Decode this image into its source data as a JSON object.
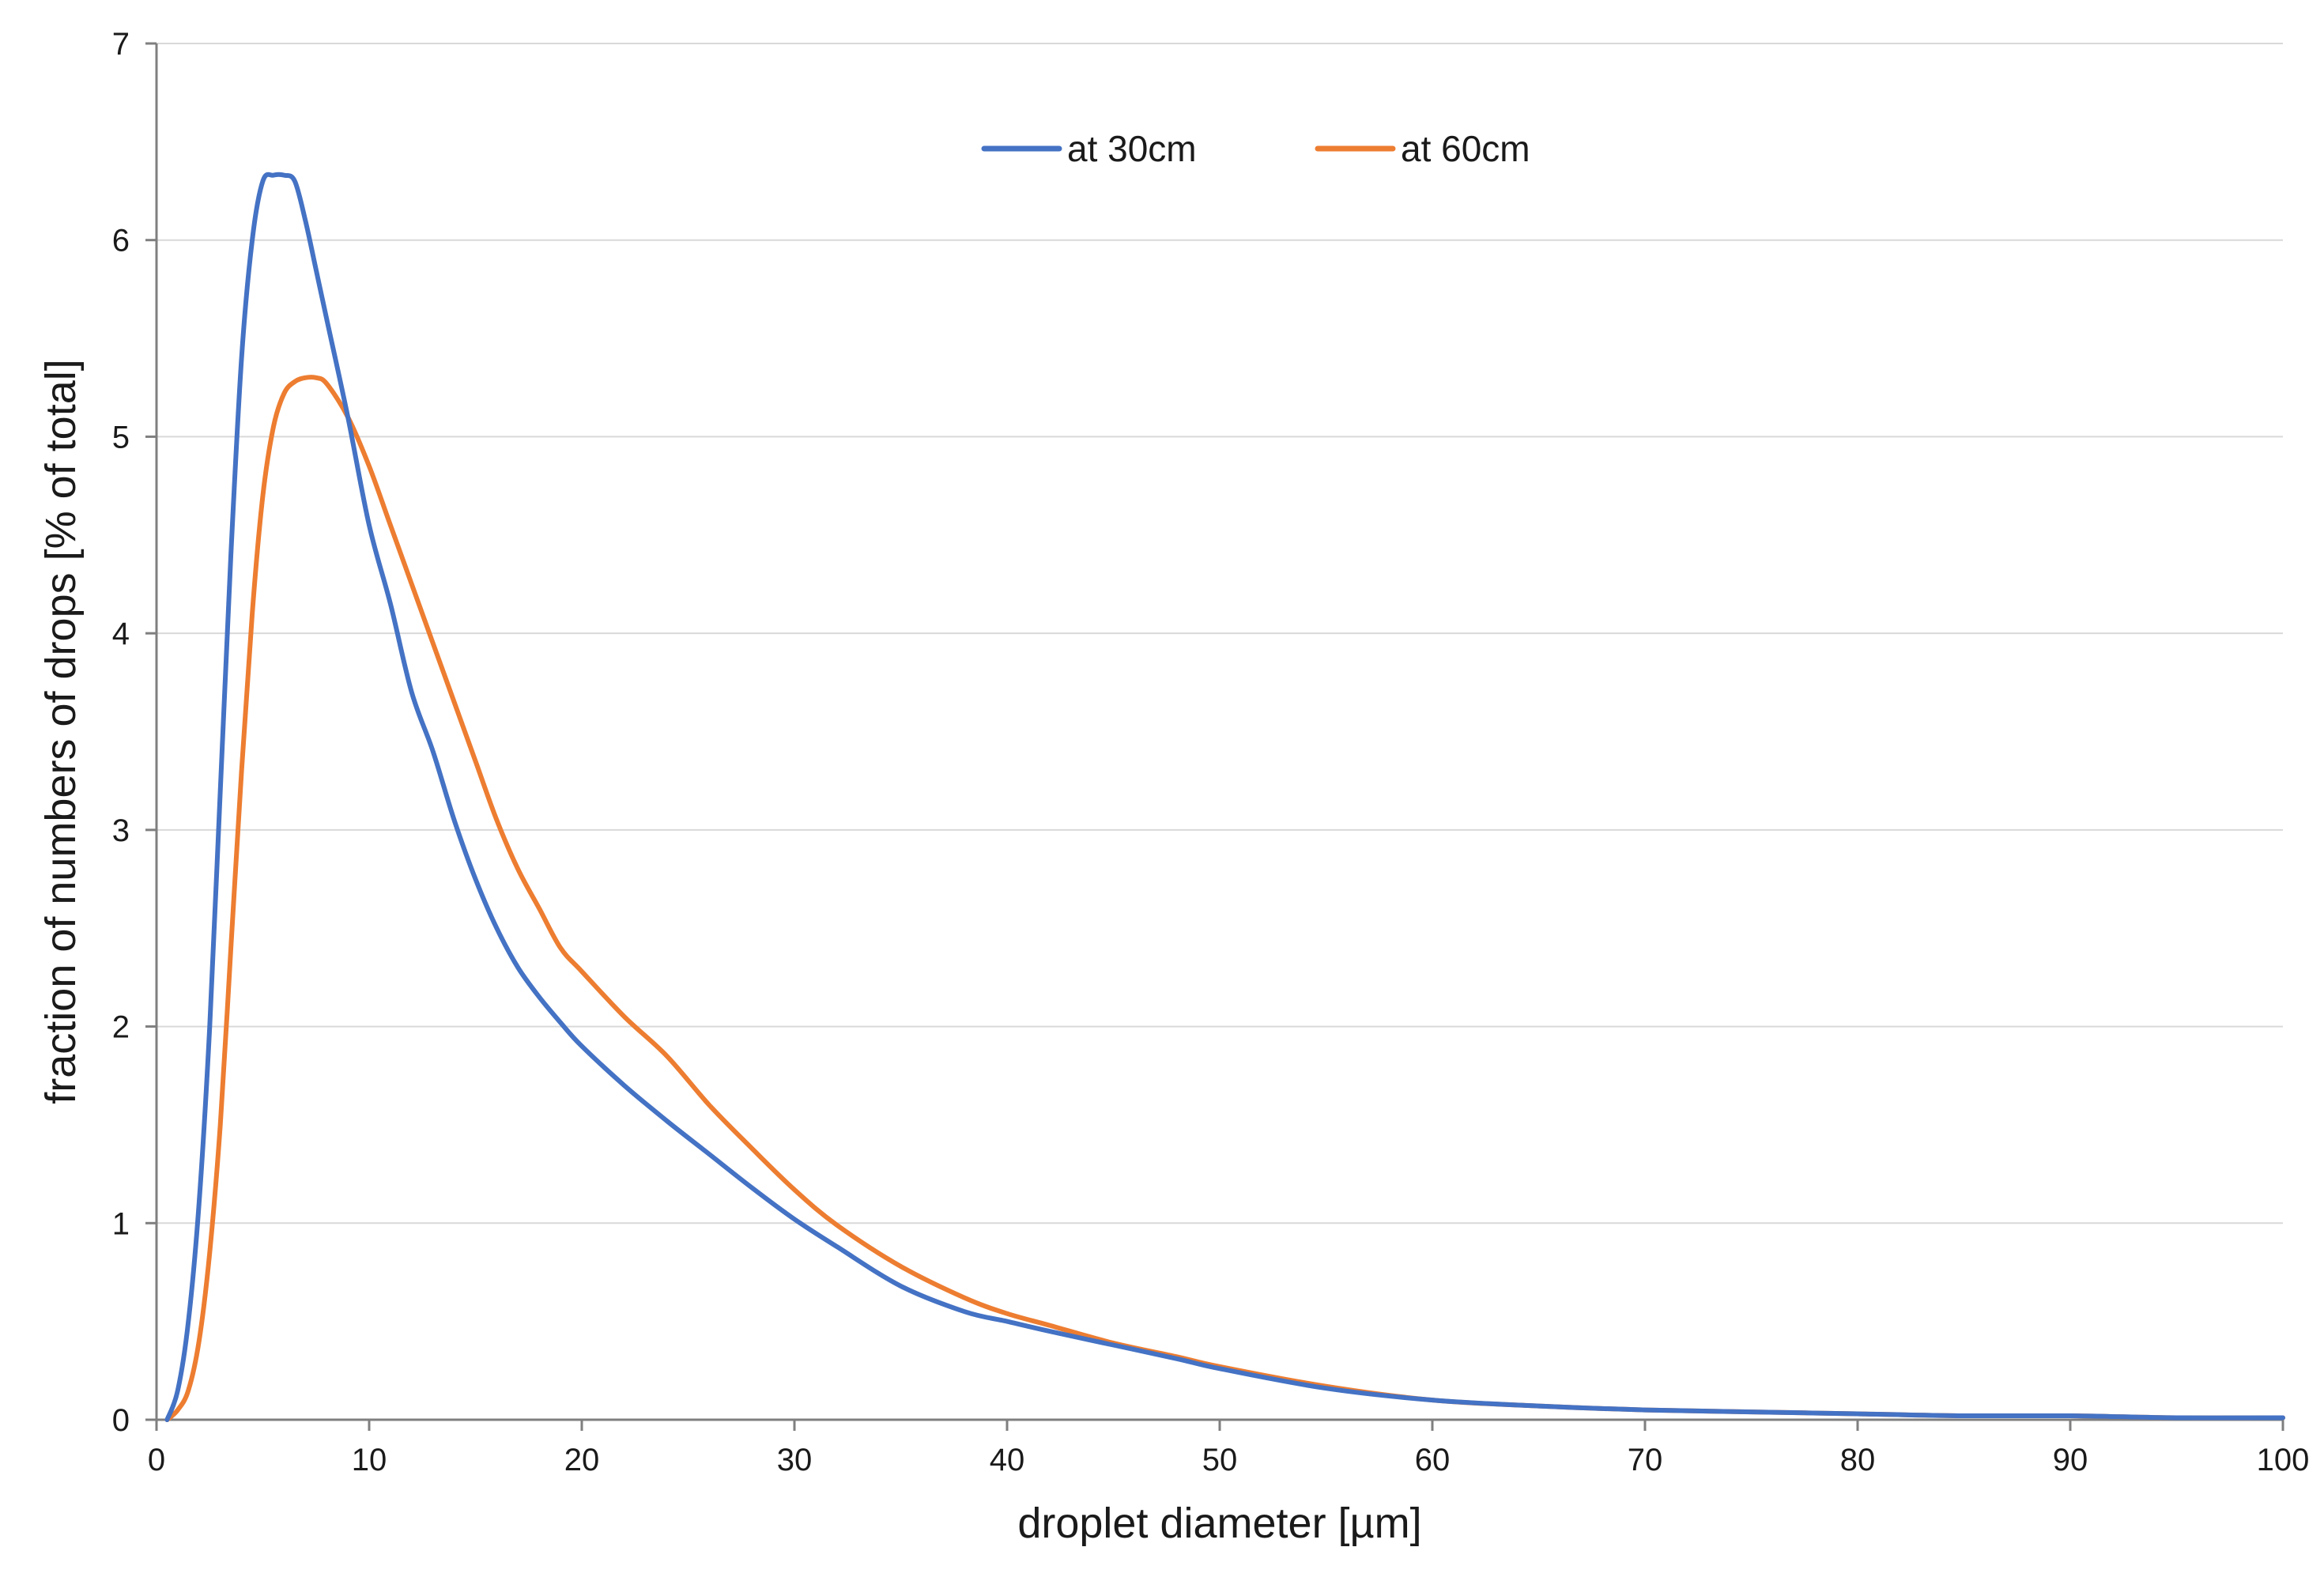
{
  "chart_data": {
    "type": "line",
    "title": "",
    "xlabel": "droplet diameter [µm]",
    "ylabel": "fraction of numbers of drops [% of total]",
    "xlim": [
      0,
      100
    ],
    "ylim": [
      0,
      7
    ],
    "x_ticks": [
      0,
      10,
      20,
      30,
      40,
      50,
      60,
      70,
      80,
      90,
      100
    ],
    "y_ticks": [
      0,
      1,
      2,
      3,
      4,
      5,
      6,
      7
    ],
    "x_tick_labels": [
      "0",
      "10",
      "20",
      "30",
      "40",
      "50",
      "60",
      "70",
      "80",
      "90",
      "100"
    ],
    "y_tick_labels": [
      "0",
      "1",
      "2",
      "3",
      "4",
      "5",
      "6",
      "7"
    ],
    "grid": "horizontal",
    "legend_position": "top-center",
    "series": [
      {
        "name": "at 30cm",
        "color": "#4472c4",
        "x": [
          0.5,
          1,
          1.5,
          2,
          2.5,
          3,
          3.5,
          4,
          4.5,
          5,
          5.5,
          6,
          6.5,
          7,
          7.5,
          8,
          9,
          10,
          11,
          12,
          13,
          14,
          15,
          16,
          17,
          18,
          19,
          20,
          22,
          24,
          26,
          28,
          30,
          32,
          35,
          38,
          40,
          42,
          45,
          48,
          50,
          55,
          60,
          65,
          70,
          75,
          80,
          85,
          90,
          95,
          100
        ],
        "y": [
          0.0,
          0.15,
          0.5,
          1.1,
          2.0,
          3.2,
          4.4,
          5.4,
          6.0,
          6.3,
          6.33,
          6.33,
          6.3,
          6.1,
          5.85,
          5.6,
          5.1,
          4.55,
          4.15,
          3.7,
          3.4,
          3.05,
          2.75,
          2.5,
          2.3,
          2.15,
          2.02,
          1.9,
          1.7,
          1.52,
          1.35,
          1.18,
          1.02,
          0.88,
          0.68,
          0.55,
          0.5,
          0.45,
          0.38,
          0.31,
          0.26,
          0.16,
          0.1,
          0.07,
          0.05,
          0.04,
          0.03,
          0.02,
          0.02,
          0.01,
          0.01
        ]
      },
      {
        "name": "at 60cm",
        "color": "#ed7d31",
        "x": [
          0.5,
          1,
          1.5,
          2,
          2.5,
          3,
          3.5,
          4,
          4.5,
          5,
          5.5,
          6,
          6.5,
          7,
          7.5,
          8,
          9,
          10,
          11,
          12,
          13,
          14,
          15,
          16,
          17,
          18,
          19,
          20,
          22,
          24,
          26,
          28,
          30,
          32,
          35,
          38,
          40,
          42,
          45,
          48,
          50,
          55,
          60,
          65,
          70,
          75,
          80,
          85,
          90,
          95,
          100
        ],
        "y": [
          0.0,
          0.05,
          0.15,
          0.4,
          0.85,
          1.5,
          2.4,
          3.3,
          4.1,
          4.7,
          5.05,
          5.22,
          5.28,
          5.3,
          5.3,
          5.27,
          5.1,
          4.85,
          4.55,
          4.25,
          3.95,
          3.65,
          3.35,
          3.05,
          2.8,
          2.6,
          2.4,
          2.28,
          2.05,
          1.85,
          1.6,
          1.38,
          1.17,
          0.99,
          0.78,
          0.62,
          0.54,
          0.48,
          0.39,
          0.32,
          0.27,
          0.17,
          0.1,
          0.07,
          0.05,
          0.04,
          0.03,
          0.02,
          0.02,
          0.01,
          0.01
        ]
      }
    ]
  }
}
